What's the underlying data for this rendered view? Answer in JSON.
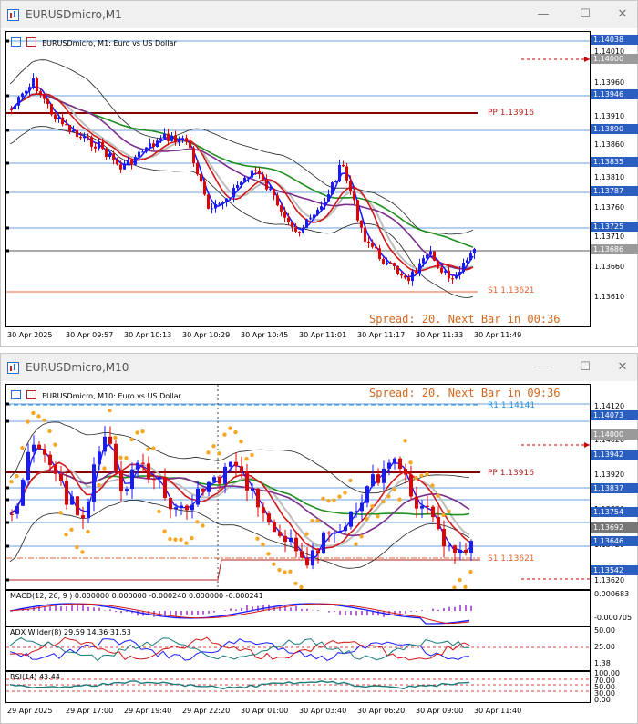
{
  "window1": {
    "title": "EURUSDmicro,M1",
    "header": "EURUSDmicro, M1:  Euro vs US Dollar",
    "spread": "Spread: 20. Next Bar in 00:36",
    "pp_label": "PP 1.13916",
    "s1_label": "S1 1.13621",
    "badges": [
      "1.14038",
      "1.14000",
      "1.13946",
      "1.13890",
      "1.13835",
      "1.13787",
      "1.13725",
      "1.13686"
    ],
    "ticks": [
      "1.14010",
      "1.13960",
      "1.13910",
      "1.13860",
      "1.13810",
      "1.13760",
      "1.13710",
      "1.13660",
      "1.13610"
    ],
    "time_labels": [
      "30 Apr 2025",
      "30 Apr 09:57",
      "30 Apr 10:13",
      "30 Apr 10:29",
      "30 Apr 10:45",
      "30 Apr 11:01",
      "30 Apr 11:17",
      "30 Apr 11:33",
      "30 Apr 11:49"
    ]
  },
  "window2": {
    "title": "EURUSDmicro,M10",
    "header": "EURUSDmicro, M10:  Euro vs US Dollar",
    "spread": "Spread: 20. Next Bar in 09:36",
    "r1_label": "R1 1.14141",
    "pp_label": "PP 1.13916",
    "s1_label": "S1 1.13621",
    "badges": [
      "1.14073",
      "1.14000",
      "1.13942",
      "1.13837",
      "1.13754",
      "1.13692",
      "1.13646",
      "1.13542"
    ],
    "ticks": [
      "1.14120",
      "1.14020",
      "1.13920",
      "1.13820",
      "1.13720",
      "1.13620"
    ],
    "macd_label": "MACD(12, 26, 9 ) 0.000000 0.000000 -0.000240 0.000000 -0.000241",
    "macd_ticks": [
      "0.000683",
      "-0.000705"
    ],
    "adx_label": "ADX Wilder(8) 29.59 14.36 31.53",
    "adx_ticks": [
      "50.00",
      "25.00",
      "1.38"
    ],
    "rsi_label": "RSI(14) 43.44",
    "rsi_ticks": [
      "100.00",
      "70.00",
      "50.00",
      "30.00",
      "0.00"
    ],
    "time_labels": [
      "29 Apr 2025",
      "29 Apr 17:00",
      "29 Apr 19:40",
      "29 Apr 22:20",
      "30 Apr 01:00",
      "30 Apr 03:40",
      "30 Apr 06:20",
      "30 Apr 09:00",
      "30 Apr 11:40"
    ]
  },
  "colors": {
    "bull": "#1a1aff",
    "bear": "#e00000",
    "pp": "#8b0000",
    "s1": "#e0632f",
    "badge_blue": "#2a5fbf",
    "grey": "#808080",
    "ma_green": "#1f8f1f",
    "ma_purple": "#7b2d8b",
    "ma_red": "#d01818",
    "psar": "#f5a623"
  }
}
